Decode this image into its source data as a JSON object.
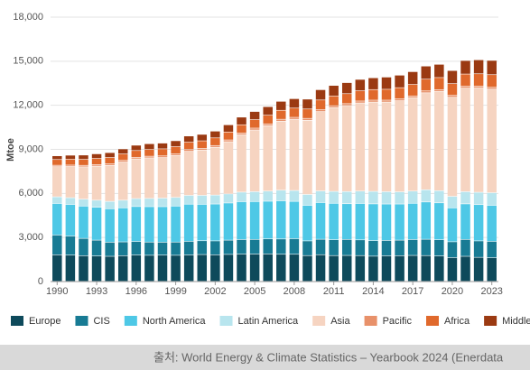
{
  "chart_data": {
    "type": "stacked_bar",
    "y_label": "Mtoe",
    "source": "출처: World Energy & Climate Statistics – Yearbook 2024 (Enerdata",
    "categories": [
      "1990",
      null,
      null,
      "1993",
      null,
      null,
      "1996",
      null,
      null,
      "1999",
      null,
      null,
      "2002",
      null,
      null,
      "2005",
      null,
      null,
      "2008",
      null,
      null,
      "2011",
      null,
      null,
      "2014",
      null,
      null,
      "2017",
      null,
      null,
      "2020",
      null,
      null,
      "2023"
    ],
    "ylim": [
      0,
      18000
    ],
    "yticks": [
      0,
      {
        "value": 3000,
        "label": "3,000"
      },
      {
        "value": 6000,
        "label": "6,000"
      },
      {
        "value": 9000,
        "label": "9,000"
      },
      {
        "value": 12000,
        "label": "12,000"
      },
      {
        "value": 15000,
        "label": "15,000"
      },
      {
        "value": 18000,
        "label": "18,000"
      }
    ],
    "grid": true,
    "legend": "bottom",
    "series": [
      {
        "name": "Europe",
        "color": "#0e4a5b",
        "values": [
          1800,
          1780,
          1740,
          1720,
          1700,
          1740,
          1790,
          1770,
          1780,
          1770,
          1790,
          1820,
          1800,
          1830,
          1850,
          1850,
          1860,
          1840,
          1840,
          1750,
          1810,
          1750,
          1760,
          1750,
          1710,
          1730,
          1740,
          1760,
          1750,
          1720,
          1610,
          1700,
          1630,
          1600
        ]
      },
      {
        "name": "CIS",
        "color": "#187b94",
        "values": [
          1350,
          1300,
          1180,
          1080,
          960,
          940,
          920,
          900,
          880,
          900,
          930,
          940,
          950,
          970,
          990,
          1000,
          1030,
          1040,
          1060,
          1000,
          1050,
          1080,
          1090,
          1070,
          1060,
          1050,
          1060,
          1080,
          1110,
          1110,
          1080,
          1150,
          1120,
          1120
        ]
      },
      {
        "name": "North America",
        "color": "#4ec8e6",
        "values": [
          2150,
          2150,
          2200,
          2240,
          2280,
          2320,
          2380,
          2410,
          2420,
          2450,
          2530,
          2480,
          2510,
          2530,
          2580,
          2580,
          2560,
          2600,
          2540,
          2420,
          2500,
          2480,
          2430,
          2480,
          2500,
          2480,
          2460,
          2470,
          2540,
          2510,
          2310,
          2420,
          2470,
          2450
        ]
      },
      {
        "name": "Latin America",
        "color": "#b8e5ee",
        "values": [
          450,
          460,
          470,
          480,
          500,
          520,
          540,
          560,
          580,
          590,
          600,
          610,
          610,
          620,
          650,
          670,
          690,
          720,
          740,
          740,
          790,
          810,
          830,
          840,
          850,
          840,
          830,
          830,
          830,
          830,
          780,
          830,
          840,
          860
        ]
      },
      {
        "name": "Asia",
        "color": "#f6d4c1",
        "values": [
          2050,
          2120,
          2200,
          2320,
          2450,
          2600,
          2700,
          2760,
          2760,
          2850,
          3000,
          3080,
          3250,
          3550,
          3900,
          4200,
          4450,
          4700,
          4850,
          5050,
          5400,
          5700,
          5850,
          6000,
          6080,
          6100,
          6200,
          6350,
          6600,
          6750,
          6750,
          7050,
          7100,
          7050
        ]
      },
      {
        "name": "Pacific",
        "color": "#e8916a",
        "values": [
          100,
          102,
          104,
          106,
          108,
          110,
          112,
          114,
          116,
          118,
          120,
          121,
          122,
          123,
          125,
          127,
          128,
          130,
          131,
          130,
          132,
          132,
          133,
          132,
          131,
          131,
          130,
          130,
          130,
          129,
          125,
          127,
          126,
          125
        ]
      },
      {
        "name": "Africa",
        "color": "#e0692c",
        "values": [
          390,
          400,
          410,
          420,
          430,
          440,
          460,
          470,
          480,
          490,
          500,
          510,
          520,
          540,
          560,
          580,
          590,
          610,
          630,
          640,
          660,
          660,
          680,
          700,
          720,
          740,
          760,
          780,
          800,
          820,
          800,
          830,
          840,
          860
        ]
      },
      {
        "name": "Middle-East",
        "color": "#9b3a12",
        "values": [
          250,
          270,
          290,
          310,
          330,
          340,
          360,
          380,
          390,
          400,
          420,
          440,
          460,
          490,
          520,
          550,
          580,
          610,
          640,
          670,
          700,
          720,
          750,
          770,
          800,
          830,
          850,
          870,
          890,
          900,
          890,
          920,
          950,
          970
        ]
      }
    ]
  }
}
